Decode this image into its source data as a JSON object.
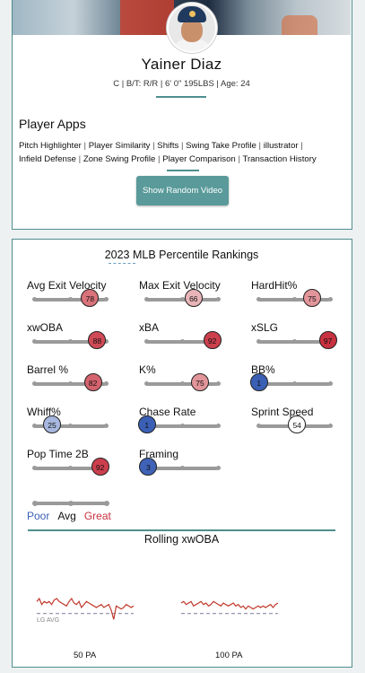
{
  "player": {
    "name": "Yainer Diaz",
    "info": "C | B/T: R/R | 6' 0\" 195LBS | Age: 24"
  },
  "apps": {
    "title": "Player Apps",
    "links": [
      "Pitch Highlighter",
      "Player Similarity",
      "Shifts",
      "Swing Take Profile",
      "illustrator",
      "Infield Defense",
      "Zone Swing Profile",
      "Player Comparison",
      "Transaction History"
    ],
    "button_label": "Show Random Video"
  },
  "rankings": {
    "title": "2023 MLB Percentile Rankings",
    "metrics": [
      {
        "label": "Avg Exit Velocity",
        "percentile": 78,
        "color": "#d9727a"
      },
      {
        "label": "Max Exit Velocity",
        "percentile": 66,
        "color": "#e8b4b8"
      },
      {
        "label": "HardHit%",
        "percentile": 75,
        "color": "#e2959a"
      },
      {
        "label": "xwOBA",
        "percentile": 88,
        "color": "#cf4a56"
      },
      {
        "label": "xBA",
        "percentile": 92,
        "color": "#cc3f4d"
      },
      {
        "label": "xSLG",
        "percentile": 97,
        "color": "#c8313f"
      },
      {
        "label": "Barrel %",
        "percentile": 82,
        "color": "#d5636d"
      },
      {
        "label": "K%",
        "percentile": 75,
        "color": "#e2959a"
      },
      {
        "label": "BB%",
        "percentile": 1,
        "color": "#3a5fb5"
      },
      {
        "label": "Whiff%",
        "percentile": 25,
        "color": "#a7b7de"
      },
      {
        "label": "Chase Rate",
        "percentile": 1,
        "color": "#3a5fb5"
      },
      {
        "label": "Sprint Speed",
        "percentile": 54,
        "color": "#ffffff"
      },
      {
        "label": "Pop Time 2B",
        "percentile": 92,
        "color": "#cc3f4d"
      },
      {
        "label": "Framing",
        "percentile": 3,
        "color": "#3e62b6"
      }
    ],
    "legend": {
      "poor": "Poor",
      "avg": "Avg",
      "great": "Great",
      "poor_color": "#3a5fb5",
      "avg_color": "#111111",
      "great_color": "#c8313f"
    }
  },
  "rolling": {
    "title": "Rolling xwOBA",
    "lg_avg_label": "LG AVG",
    "charts": [
      {
        "label": "50 PA",
        "values": [
          0.36,
          0.37,
          0.35,
          0.36,
          0.355,
          0.36,
          0.35,
          0.365,
          0.37,
          0.36,
          0.355,
          0.35,
          0.345,
          0.36,
          0.37,
          0.355,
          0.35,
          0.36,
          0.34,
          0.35,
          0.36,
          0.355,
          0.35,
          0.345,
          0.34,
          0.345,
          0.35,
          0.34,
          0.345,
          0.35,
          0.33,
          0.3,
          0.345,
          0.34,
          0.335,
          0.34,
          0.35,
          0.345,
          0.34,
          0.345
        ]
      },
      {
        "label": "100 PA",
        "values": [
          0.355,
          0.36,
          0.35,
          0.355,
          0.36,
          0.345,
          0.35,
          0.355,
          0.36,
          0.35,
          0.355,
          0.345,
          0.35,
          0.36,
          0.355,
          0.35,
          0.345,
          0.355,
          0.35,
          0.345,
          0.35,
          0.355,
          0.345,
          0.35,
          0.34,
          0.345,
          0.335,
          0.345,
          0.34,
          0.335,
          0.34,
          0.345,
          0.34,
          0.345,
          0.34,
          0.345,
          0.35,
          0.34,
          0.35,
          0.355
        ]
      }
    ],
    "lg_avg": 0.32,
    "ylim": [
      0.28,
      0.4
    ]
  },
  "colors": {
    "accent": "#4f8e8e",
    "button": "#5a9a9a",
    "line": "#c0392b",
    "lg_line": "#8a8aa8"
  }
}
